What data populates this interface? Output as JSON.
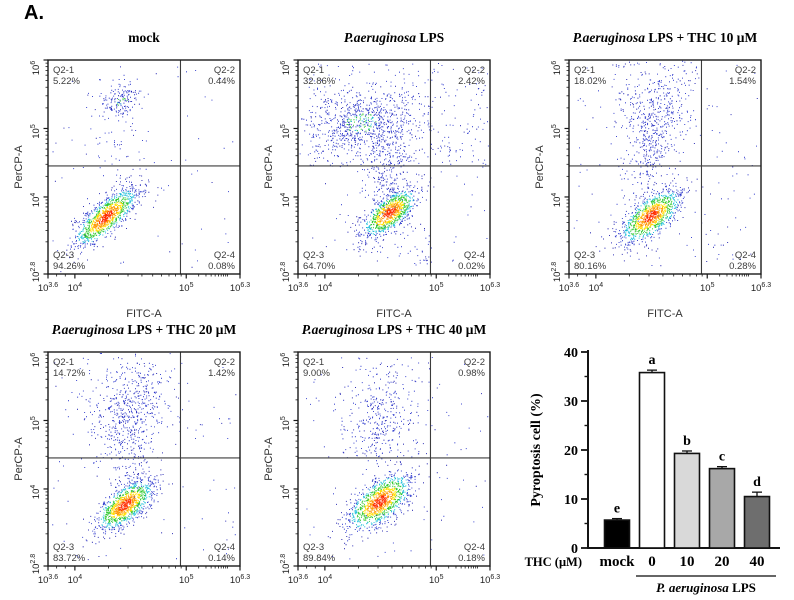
{
  "figure_label": "A.",
  "axis": {
    "x_label": "FITC-A",
    "y_label": "PerCP-A",
    "x_ticks": [
      "10^3.6",
      "10^4",
      "10^5",
      "10^6.3"
    ],
    "y_ticks": [
      "10^6",
      "10^5",
      "10^4",
      "10^2.8"
    ]
  },
  "chart_data": [
    {
      "type": "scatter",
      "subtype": "flow-cytometry",
      "title_italic": "",
      "title_rest": "mock",
      "xlabel": "FITC-A",
      "ylabel": "PerCP-A",
      "x_range_log": [
        3.6,
        6.3
      ],
      "y_range_log": [
        2.8,
        6.0
      ],
      "quadrants": [
        {
          "name": "Q2-1",
          "percent": 5.22
        },
        {
          "name": "Q2-2",
          "percent": 0.44
        },
        {
          "name": "Q2-3",
          "percent": 94.26
        },
        {
          "name": "Q2-4",
          "percent": 0.08
        }
      ]
    },
    {
      "type": "scatter",
      "subtype": "flow-cytometry",
      "title_italic": "P.aeruginosa",
      "title_rest": " LPS",
      "xlabel": "FITC-A",
      "ylabel": "PerCP-A",
      "x_range_log": [
        3.6,
        6.3
      ],
      "y_range_log": [
        2.8,
        6.0
      ],
      "quadrants": [
        {
          "name": "Q2-1",
          "percent": 32.86
        },
        {
          "name": "Q2-2",
          "percent": 2.42
        },
        {
          "name": "Q2-3",
          "percent": 64.7
        },
        {
          "name": "Q2-4",
          "percent": 0.02
        }
      ]
    },
    {
      "type": "scatter",
      "subtype": "flow-cytometry",
      "title_italic": "P.aeruginosa",
      "title_rest": " LPS + THC 10 μM",
      "xlabel": "FITC-A",
      "ylabel": "PerCP-A",
      "x_range_log": [
        3.6,
        6.3
      ],
      "y_range_log": [
        2.8,
        6.0
      ],
      "quadrants": [
        {
          "name": "Q2-1",
          "percent": 18.02
        },
        {
          "name": "Q2-2",
          "percent": 1.54
        },
        {
          "name": "Q2-3",
          "percent": 80.16
        },
        {
          "name": "Q2-4",
          "percent": 0.28
        }
      ]
    },
    {
      "type": "scatter",
      "subtype": "flow-cytometry",
      "title_italic": "P.aeruginosa",
      "title_rest": " LPS + THC 20 μM",
      "xlabel": "",
      "ylabel": "PerCP-A",
      "x_range_log": [
        3.6,
        6.3
      ],
      "y_range_log": [
        2.8,
        6.0
      ],
      "quadrants": [
        {
          "name": "Q2-1",
          "percent": 14.72
        },
        {
          "name": "Q2-2",
          "percent": 1.42
        },
        {
          "name": "Q2-3",
          "percent": 83.72
        },
        {
          "name": "Q2-4",
          "percent": 0.14
        }
      ]
    },
    {
      "type": "scatter",
      "subtype": "flow-cytometry",
      "title_italic": "P.aeruginosa",
      "title_rest": " LPS + THC 40 μM",
      "xlabel": "",
      "ylabel": "PerCP-A",
      "x_range_log": [
        3.6,
        6.3
      ],
      "y_range_log": [
        2.8,
        6.0
      ],
      "quadrants": [
        {
          "name": "Q2-1",
          "percent": 9.0
        },
        {
          "name": "Q2-2",
          "percent": 0.98
        },
        {
          "name": "Q2-3",
          "percent": 89.84
        },
        {
          "name": "Q2-4",
          "percent": 0.18
        }
      ]
    },
    {
      "type": "bar",
      "ylabel": "Pyroptosis cell (%)",
      "ylim": [
        0,
        40
      ],
      "yticks": [
        0,
        10,
        20,
        30,
        40
      ],
      "x_axis_label": "THC (μM)",
      "categories": [
        "mock",
        "0",
        "10",
        "20",
        "40"
      ],
      "values": [
        5.7,
        35.8,
        19.3,
        16.2,
        10.5
      ],
      "errors": [
        0.3,
        0.5,
        0.5,
        0.4,
        0.9
      ],
      "sig_letters": [
        "e",
        "a",
        "b",
        "c",
        "d"
      ],
      "bar_colors": [
        "#000000",
        "#ffffff",
        "#d9d9d9",
        "#a8a8a8",
        "#6e6e6e"
      ],
      "group_label_italic": "P. aeruginosa",
      "group_label_rest": " LPS",
      "group_span_categories": [
        "0",
        "10",
        "20",
        "40"
      ]
    }
  ],
  "colors": {
    "dot_blue": "#2a36cc",
    "dot_navy": "#1c1cae",
    "dot_cyan": "#15bcd9",
    "dot_green": "#30c92f",
    "dot_yellow": "#ffe000",
    "dot_orange": "#ff9800",
    "dot_red": "#ff2d00",
    "axis_black": "#141414",
    "quadrant_line": "#3c3c3c"
  }
}
